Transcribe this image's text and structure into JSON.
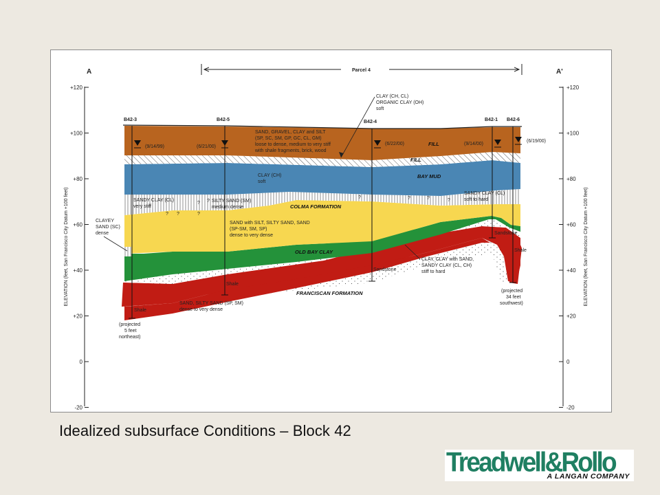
{
  "caption": "Idealized subsurface Conditions – Block 42",
  "logo": {
    "main_text_1": "Treadwell",
    "amp": "&",
    "main_text_2": "Rollo",
    "sub_text": "A LANGAN COMPANY"
  },
  "section": {
    "left_label": "A",
    "right_label": "A'",
    "parcel_label": "Parcel 4"
  },
  "axis": {
    "title": "ELEVATION (feet, San Francisco City Datum +100 feet)",
    "ticks": [
      "+120",
      "+100",
      "+80",
      "+60",
      "+40",
      "+20",
      "0",
      "-20"
    ]
  },
  "borings": [
    {
      "id": "B42-3",
      "date": "(9/14/99)",
      "bottom_label": "Shale",
      "note": [
        "(projected",
        "5 feet",
        "northeast)"
      ]
    },
    {
      "id": "B42-5",
      "date": "(6/21/00)",
      "bottom_label": "Shale"
    },
    {
      "id": "B42-4",
      "date": "(6/22/00)",
      "bottom_label": "Sandstone"
    },
    {
      "id": "B42-1",
      "date": "(9/14/00)",
      "bottom_label": "Sandstone"
    },
    {
      "id": "B42-6",
      "date": "(6/19/00)",
      "bottom_label": "Shale",
      "note": [
        "(projected",
        "34 feet",
        "southwest)"
      ]
    }
  ],
  "layers": {
    "fill_top": "FILL",
    "fill_lower": "FILL",
    "bay_mud": "BAY MUD",
    "colma": "COLMA FORMATION",
    "old_bay_clay": "OLD BAY CLAY",
    "franciscan": "FRANCISCAN FORMATION"
  },
  "annotations": {
    "fill_desc": [
      "SAND, GRAVEL, CLAY and SILT",
      "(SP, SC, SM, GP, GC, CL, GM)",
      "loose to dense, medium to very stiff",
      "with shale fragments, brick, wood"
    ],
    "clay_top": [
      "CLAY (CH, CL)",
      "ORGANIC CLAY (OH)",
      "soft"
    ],
    "bay_mud_desc": [
      "CLAY (CH)",
      "soft"
    ],
    "sandy_clay_left": [
      "SANDY CLAY (CL)",
      "very stiff"
    ],
    "silty_sand": [
      "SILTY SAND (SM)",
      "medium dense"
    ],
    "sandy_clay_right": [
      "SANDY CLAY (CL)",
      "soft to hard"
    ],
    "clayey_sand": [
      "CLAYEY",
      "SAND (SC)",
      "dense"
    ],
    "colma_desc": [
      "SAND with SILT, SILTY SAND, SAND",
      "(SP-SM, SM, SP)",
      "dense to very dense"
    ],
    "clay_sand": [
      "CLAY, CLAY with SAND,",
      "SANDY CLAY (CL, CH)",
      "stiff to hard"
    ],
    "sand_lower": [
      "SAND, SILTY SAND (SP, SM)",
      "dense to very dense"
    ]
  },
  "colors": {
    "fill": "#b8641f",
    "bay_mud": "#4a86b4",
    "colma": "#f7d750",
    "old_bay_clay": "#24923a",
    "franciscan": "#c11c14",
    "logo_green": "#1f7f62"
  }
}
